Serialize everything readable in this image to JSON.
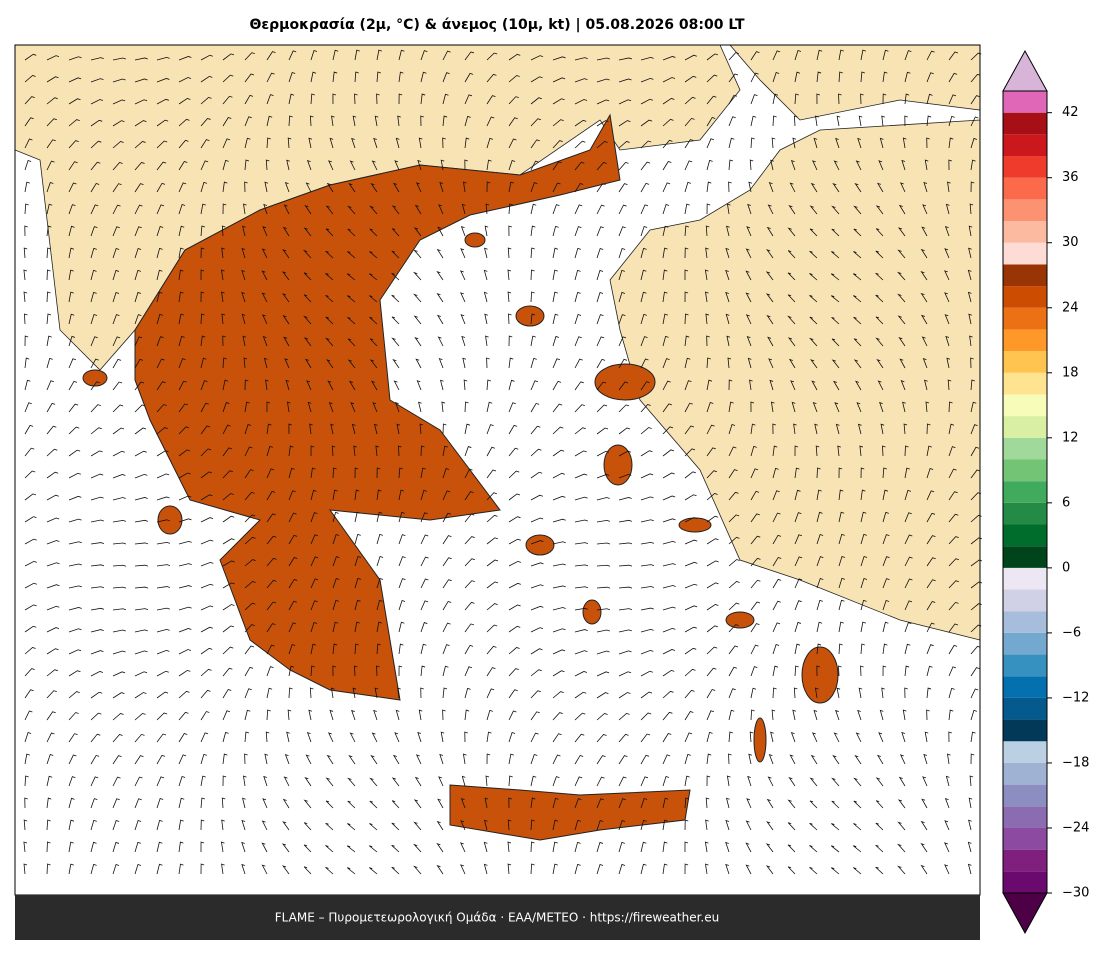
{
  "title": "Θερμοκρασία (2μ, °C) & άνεμος (10μ, kt)  |  05.08.2026 08:00 LT",
  "footer": "FLAME – Πυρομετεωρολογική Ομάδα · ΕΑΑ/METEO · https://fireweather.eu",
  "colorbar": {
    "lim": [
      -30,
      44
    ],
    "ticks": [
      {
        "value": -30,
        "label": "−30"
      },
      {
        "value": -24,
        "label": "−24"
      },
      {
        "value": -18,
        "label": "−18"
      },
      {
        "value": -12,
        "label": "−12"
      },
      {
        "value": -6,
        "label": "−6"
      },
      0,
      6,
      12,
      18,
      24,
      30,
      36,
      42
    ],
    "colors": [
      "#6a0a6e",
      "#80207e",
      "#8c4aa0",
      "#8c6cb0",
      "#8c8dc0",
      "#a0b2d4",
      "#bcd0e4",
      "#023858",
      "#045a8d",
      "#0570b0",
      "#3690c0",
      "#74a9cf",
      "#a6bddb",
      "#d0d1e6",
      "#ece7f2",
      "#00441b",
      "#006d2c",
      "#238b45",
      "#41ab5d",
      "#74c476",
      "#a1d99b",
      "#d9f0a3",
      "#f7fcb9",
      "#fee391",
      "#fec44f",
      "#fe9929",
      "#ec7014",
      "#cc4c02",
      "#993404",
      "#fcdcd4",
      "#fcbba1",
      "#fc9272",
      "#fb6a4a",
      "#ef3b2c",
      "#cb181d",
      "#a50f15",
      "#e066b8"
    ],
    "extend_colors": [
      "#4d0045",
      "#d8b4d8"
    ]
  }
}
